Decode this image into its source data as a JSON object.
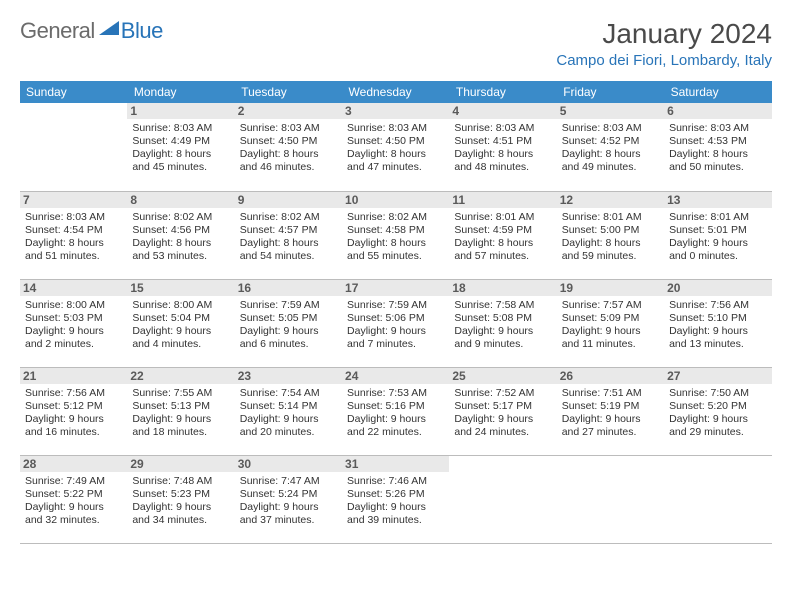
{
  "brand": {
    "part1": "General",
    "part2": "Blue"
  },
  "title": "January 2024",
  "location": "Campo dei Fiori, Lombardy, Italy",
  "colors": {
    "header_bg": "#3a8bc9",
    "accent": "#2874b8",
    "text": "#333333",
    "day_header_bg": "#e9e9e9",
    "row_divider": "#bcbcbc"
  },
  "weekdays": [
    "Sunday",
    "Monday",
    "Tuesday",
    "Wednesday",
    "Thursday",
    "Friday",
    "Saturday"
  ],
  "weeks": [
    [
      null,
      {
        "n": "1",
        "sr": "Sunrise: 8:03 AM",
        "ss": "Sunset: 4:49 PM",
        "d1": "Daylight: 8 hours",
        "d2": "and 45 minutes."
      },
      {
        "n": "2",
        "sr": "Sunrise: 8:03 AM",
        "ss": "Sunset: 4:50 PM",
        "d1": "Daylight: 8 hours",
        "d2": "and 46 minutes."
      },
      {
        "n": "3",
        "sr": "Sunrise: 8:03 AM",
        "ss": "Sunset: 4:50 PM",
        "d1": "Daylight: 8 hours",
        "d2": "and 47 minutes."
      },
      {
        "n": "4",
        "sr": "Sunrise: 8:03 AM",
        "ss": "Sunset: 4:51 PM",
        "d1": "Daylight: 8 hours",
        "d2": "and 48 minutes."
      },
      {
        "n": "5",
        "sr": "Sunrise: 8:03 AM",
        "ss": "Sunset: 4:52 PM",
        "d1": "Daylight: 8 hours",
        "d2": "and 49 minutes."
      },
      {
        "n": "6",
        "sr": "Sunrise: 8:03 AM",
        "ss": "Sunset: 4:53 PM",
        "d1": "Daylight: 8 hours",
        "d2": "and 50 minutes."
      }
    ],
    [
      {
        "n": "7",
        "sr": "Sunrise: 8:03 AM",
        "ss": "Sunset: 4:54 PM",
        "d1": "Daylight: 8 hours",
        "d2": "and 51 minutes."
      },
      {
        "n": "8",
        "sr": "Sunrise: 8:02 AM",
        "ss": "Sunset: 4:56 PM",
        "d1": "Daylight: 8 hours",
        "d2": "and 53 minutes."
      },
      {
        "n": "9",
        "sr": "Sunrise: 8:02 AM",
        "ss": "Sunset: 4:57 PM",
        "d1": "Daylight: 8 hours",
        "d2": "and 54 minutes."
      },
      {
        "n": "10",
        "sr": "Sunrise: 8:02 AM",
        "ss": "Sunset: 4:58 PM",
        "d1": "Daylight: 8 hours",
        "d2": "and 55 minutes."
      },
      {
        "n": "11",
        "sr": "Sunrise: 8:01 AM",
        "ss": "Sunset: 4:59 PM",
        "d1": "Daylight: 8 hours",
        "d2": "and 57 minutes."
      },
      {
        "n": "12",
        "sr": "Sunrise: 8:01 AM",
        "ss": "Sunset: 5:00 PM",
        "d1": "Daylight: 8 hours",
        "d2": "and 59 minutes."
      },
      {
        "n": "13",
        "sr": "Sunrise: 8:01 AM",
        "ss": "Sunset: 5:01 PM",
        "d1": "Daylight: 9 hours",
        "d2": "and 0 minutes."
      }
    ],
    [
      {
        "n": "14",
        "sr": "Sunrise: 8:00 AM",
        "ss": "Sunset: 5:03 PM",
        "d1": "Daylight: 9 hours",
        "d2": "and 2 minutes."
      },
      {
        "n": "15",
        "sr": "Sunrise: 8:00 AM",
        "ss": "Sunset: 5:04 PM",
        "d1": "Daylight: 9 hours",
        "d2": "and 4 minutes."
      },
      {
        "n": "16",
        "sr": "Sunrise: 7:59 AM",
        "ss": "Sunset: 5:05 PM",
        "d1": "Daylight: 9 hours",
        "d2": "and 6 minutes."
      },
      {
        "n": "17",
        "sr": "Sunrise: 7:59 AM",
        "ss": "Sunset: 5:06 PM",
        "d1": "Daylight: 9 hours",
        "d2": "and 7 minutes."
      },
      {
        "n": "18",
        "sr": "Sunrise: 7:58 AM",
        "ss": "Sunset: 5:08 PM",
        "d1": "Daylight: 9 hours",
        "d2": "and 9 minutes."
      },
      {
        "n": "19",
        "sr": "Sunrise: 7:57 AM",
        "ss": "Sunset: 5:09 PM",
        "d1": "Daylight: 9 hours",
        "d2": "and 11 minutes."
      },
      {
        "n": "20",
        "sr": "Sunrise: 7:56 AM",
        "ss": "Sunset: 5:10 PM",
        "d1": "Daylight: 9 hours",
        "d2": "and 13 minutes."
      }
    ],
    [
      {
        "n": "21",
        "sr": "Sunrise: 7:56 AM",
        "ss": "Sunset: 5:12 PM",
        "d1": "Daylight: 9 hours",
        "d2": "and 16 minutes."
      },
      {
        "n": "22",
        "sr": "Sunrise: 7:55 AM",
        "ss": "Sunset: 5:13 PM",
        "d1": "Daylight: 9 hours",
        "d2": "and 18 minutes."
      },
      {
        "n": "23",
        "sr": "Sunrise: 7:54 AM",
        "ss": "Sunset: 5:14 PM",
        "d1": "Daylight: 9 hours",
        "d2": "and 20 minutes."
      },
      {
        "n": "24",
        "sr": "Sunrise: 7:53 AM",
        "ss": "Sunset: 5:16 PM",
        "d1": "Daylight: 9 hours",
        "d2": "and 22 minutes."
      },
      {
        "n": "25",
        "sr": "Sunrise: 7:52 AM",
        "ss": "Sunset: 5:17 PM",
        "d1": "Daylight: 9 hours",
        "d2": "and 24 minutes."
      },
      {
        "n": "26",
        "sr": "Sunrise: 7:51 AM",
        "ss": "Sunset: 5:19 PM",
        "d1": "Daylight: 9 hours",
        "d2": "and 27 minutes."
      },
      {
        "n": "27",
        "sr": "Sunrise: 7:50 AM",
        "ss": "Sunset: 5:20 PM",
        "d1": "Daylight: 9 hours",
        "d2": "and 29 minutes."
      }
    ],
    [
      {
        "n": "28",
        "sr": "Sunrise: 7:49 AM",
        "ss": "Sunset: 5:22 PM",
        "d1": "Daylight: 9 hours",
        "d2": "and 32 minutes."
      },
      {
        "n": "29",
        "sr": "Sunrise: 7:48 AM",
        "ss": "Sunset: 5:23 PM",
        "d1": "Daylight: 9 hours",
        "d2": "and 34 minutes."
      },
      {
        "n": "30",
        "sr": "Sunrise: 7:47 AM",
        "ss": "Sunset: 5:24 PM",
        "d1": "Daylight: 9 hours",
        "d2": "and 37 minutes."
      },
      {
        "n": "31",
        "sr": "Sunrise: 7:46 AM",
        "ss": "Sunset: 5:26 PM",
        "d1": "Daylight: 9 hours",
        "d2": "and 39 minutes."
      },
      null,
      null,
      null
    ]
  ]
}
